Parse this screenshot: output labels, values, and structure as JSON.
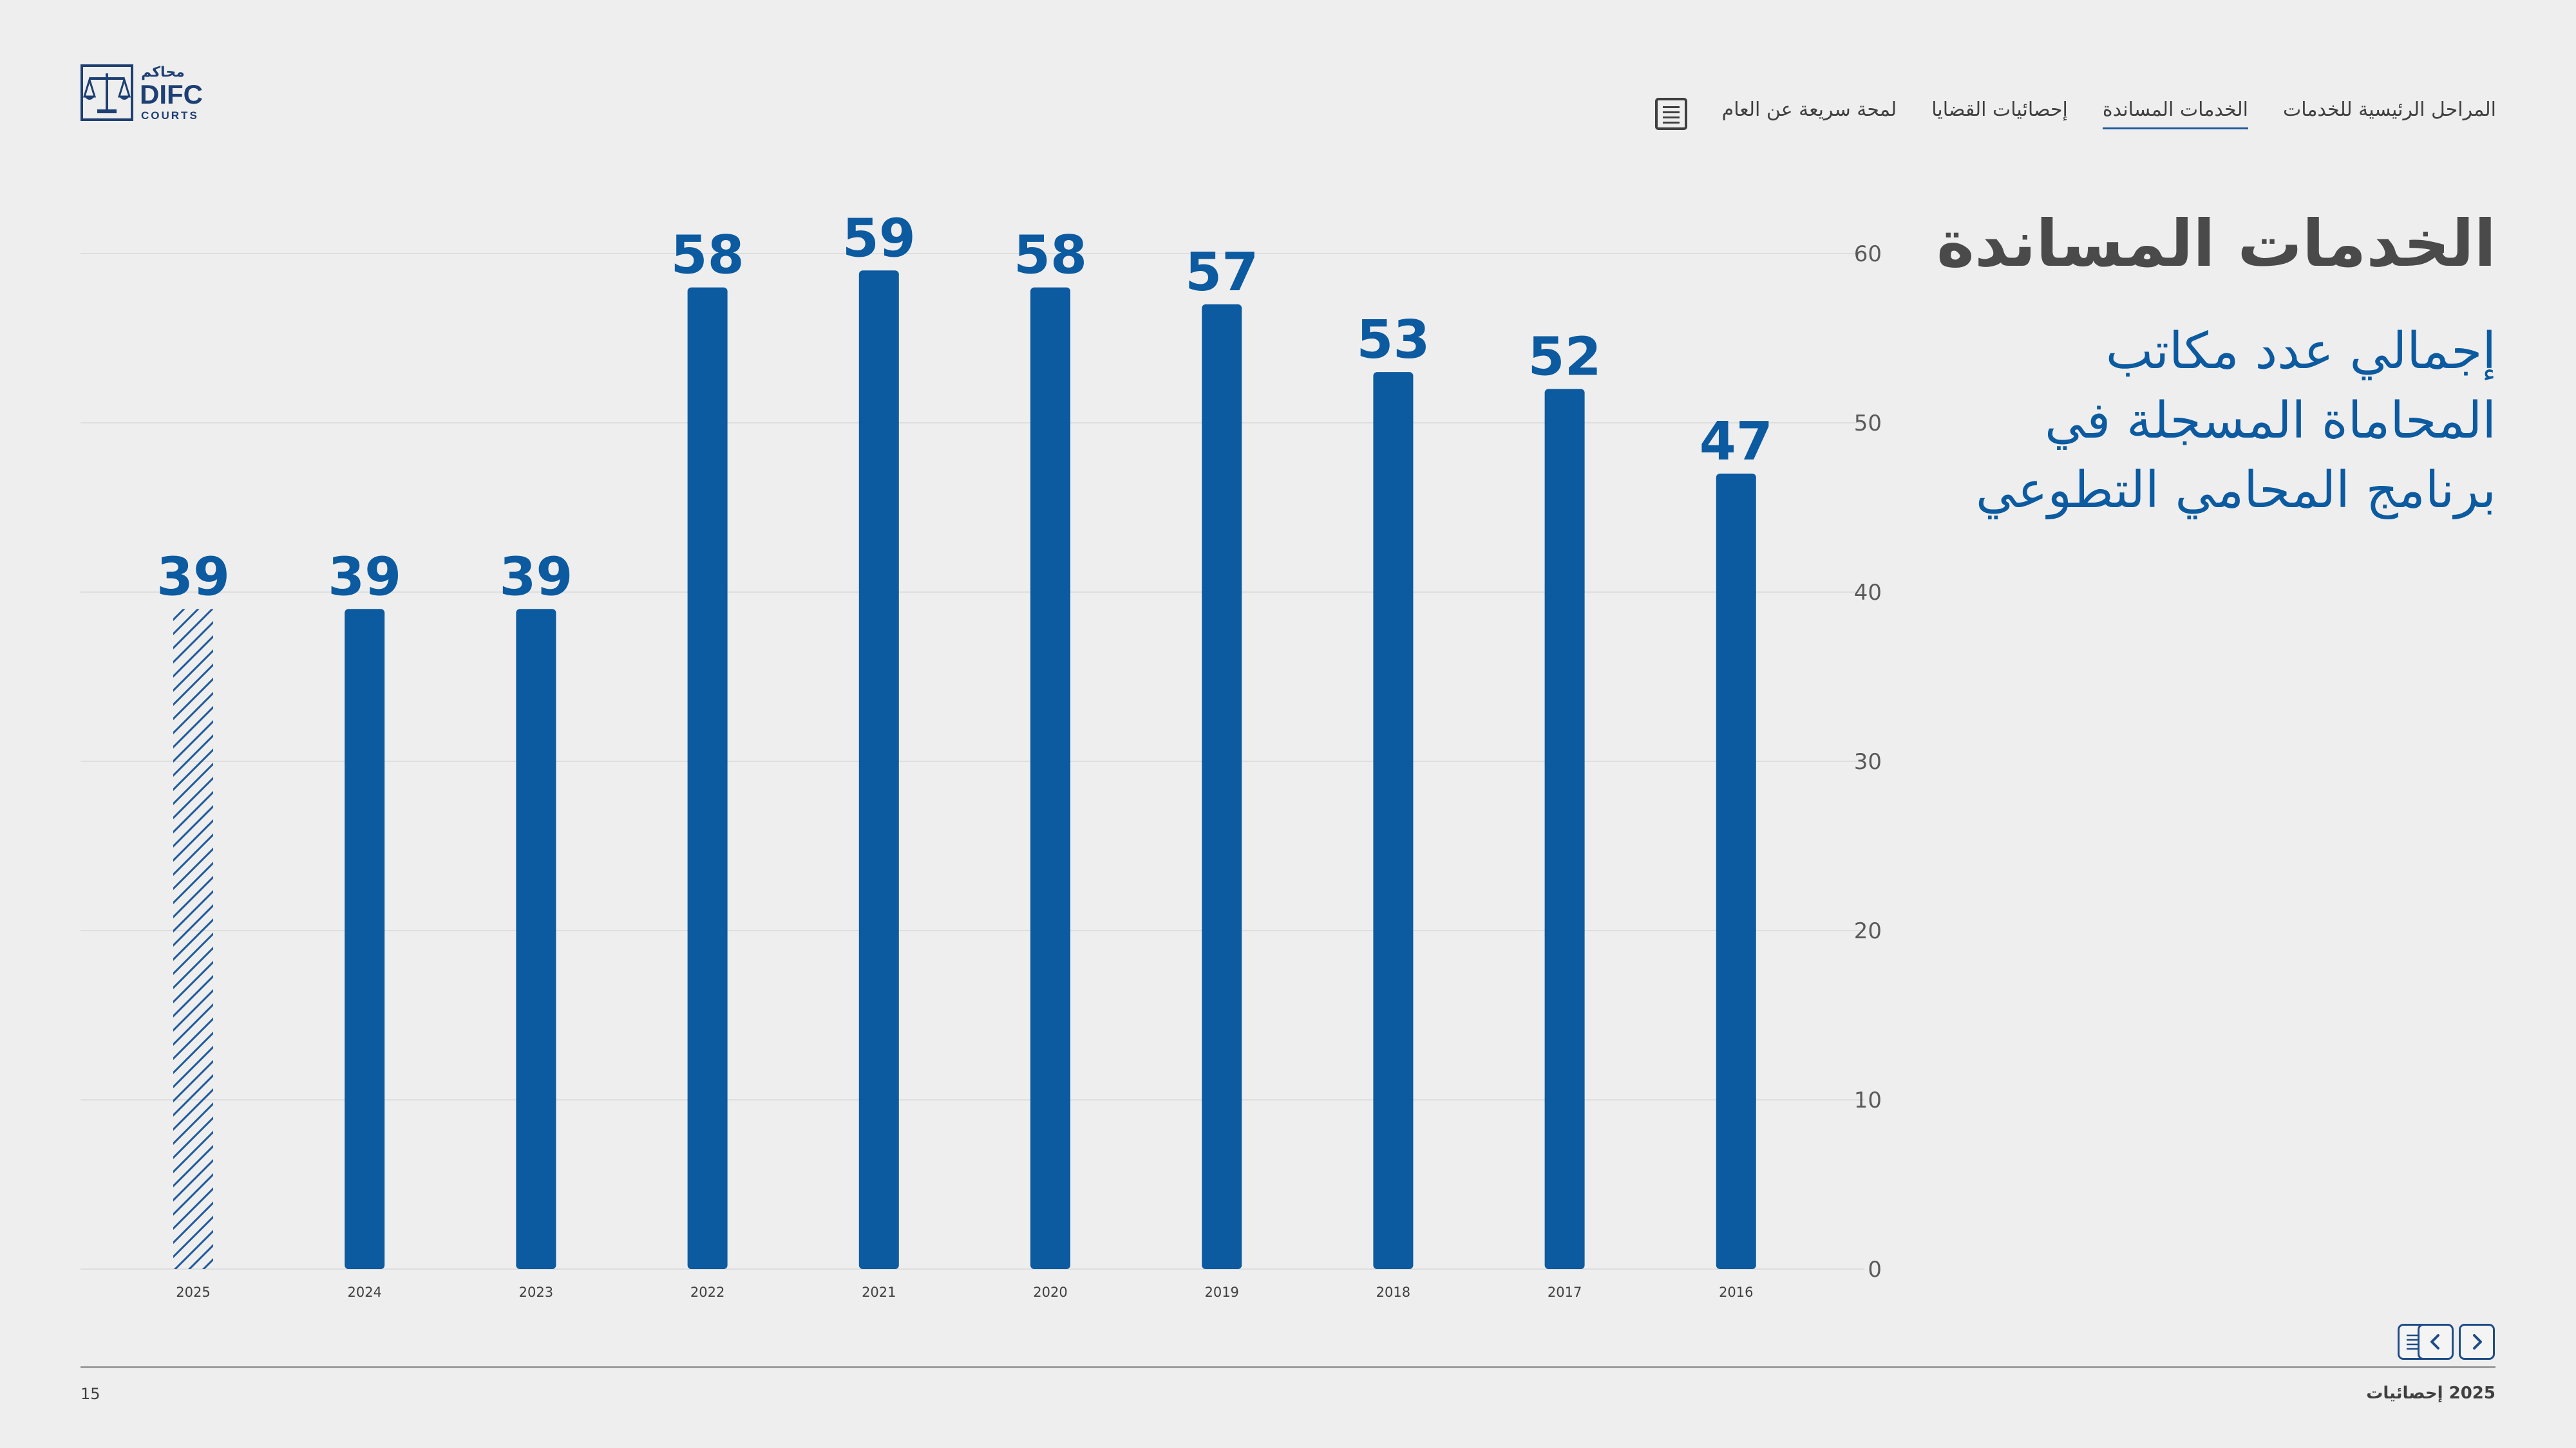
{
  "logo": {
    "arabic": "محاكم",
    "name": "DIFC",
    "sub": "COURTS"
  },
  "nav": {
    "menu_icon": "menu-list-icon",
    "items": [
      {
        "label": "لمحة سريعة عن العام",
        "active": false
      },
      {
        "label": "إحصائيات القضايا",
        "active": false
      },
      {
        "label": "الخدمات المساندة",
        "active": true
      },
      {
        "label": "المراحل الرئيسية للخدمات",
        "active": false
      }
    ]
  },
  "page": {
    "title": "الخدمات المساندة",
    "subtitle_lines": [
      "إجمالي عدد مكاتب",
      "المحاماة المسجلة في",
      "برنامج المحامي التطوعي"
    ]
  },
  "colors": {
    "bar": "#0c5aa0",
    "accent": "#1e4c86",
    "grid": "#dedede",
    "background": "#eeeeee"
  },
  "chart_data": {
    "type": "bar",
    "categories": [
      "2025",
      "2024",
      "2023",
      "2022",
      "2021",
      "2020",
      "2019",
      "2018",
      "2017",
      "2016"
    ],
    "values": [
      39,
      39,
      39,
      58,
      59,
      58,
      57,
      53,
      52,
      47
    ],
    "hatched": [
      true,
      false,
      false,
      false,
      false,
      false,
      false,
      false,
      false,
      false
    ],
    "ylim": [
      0,
      60
    ],
    "yticks": [
      0,
      10,
      20,
      30,
      40,
      50,
      60
    ],
    "y_axis_side": "right",
    "grid": true,
    "data_labels": true
  },
  "footer": {
    "page_number": "15",
    "label": "2025 إحصائيات"
  },
  "controls": {
    "toc_icon": "list-icon",
    "prev_icon": "chevron-left-icon",
    "next_icon": "chevron-right-icon"
  }
}
